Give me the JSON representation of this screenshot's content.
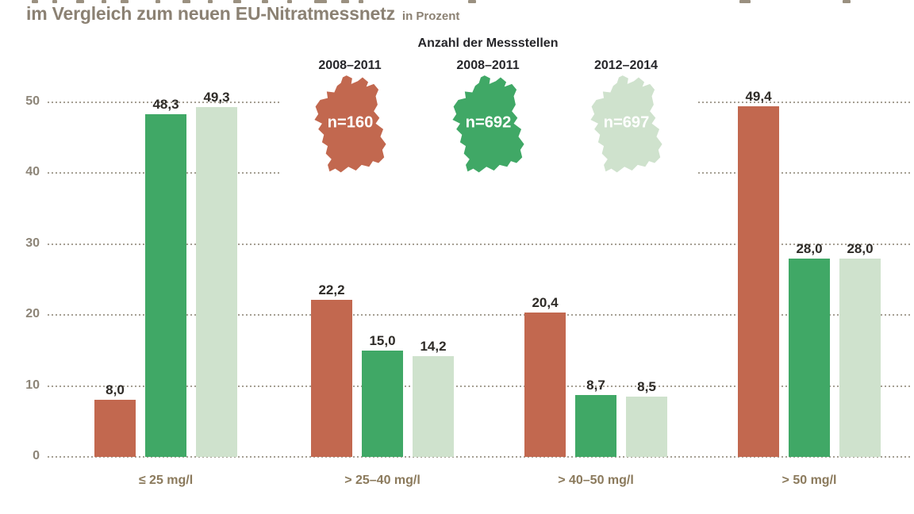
{
  "title": {
    "text": "im Vergleich zum neuen EU-Nitratmessnetz",
    "unit": "in Prozent"
  },
  "legend": {
    "heading": "Anzahl der Messstellen",
    "items": [
      {
        "period": "2008–2011",
        "n_label": "n=160",
        "color": "#c2684f"
      },
      {
        "period": "2008–2011",
        "n_label": "n=692",
        "color": "#40a866"
      },
      {
        "period": "2012–2014",
        "n_label": "n=697",
        "color": "#cfe2cd"
      }
    ]
  },
  "chart_data": {
    "type": "bar",
    "title": "im Vergleich zum neuen EU-Nitratmessnetz",
    "unit": "in Prozent",
    "categories": [
      "≤ 25 mg/l",
      "> 25–40 mg/l",
      "> 40–50 mg/l",
      "> 50 mg/l"
    ],
    "series": [
      {
        "name": "2008–2011",
        "n": "n=160",
        "color": "#c2684f",
        "values": [
          8.0,
          22.2,
          20.4,
          49.4
        ],
        "labels": [
          "8,0",
          "22,2",
          "20,4",
          "49,4"
        ]
      },
      {
        "name": "2008–2011",
        "n": "n=692",
        "color": "#40a866",
        "values": [
          48.3,
          15.0,
          8.7,
          28.0
        ],
        "labels": [
          "48,3",
          "15,0",
          "8,7",
          "28,0"
        ]
      },
      {
        "name": "2012–2014",
        "n": "n=697",
        "color": "#cfe2cd",
        "values": [
          49.3,
          14.2,
          8.5,
          28.0
        ],
        "labels": [
          "49,3",
          "14,2",
          "8,5",
          "28,0"
        ]
      }
    ],
    "yticks": [
      0,
      10,
      20,
      30,
      40,
      50
    ],
    "ylim": [
      0,
      50
    ],
    "grid": "dotted-horizontal",
    "legend_position": "top-center"
  }
}
